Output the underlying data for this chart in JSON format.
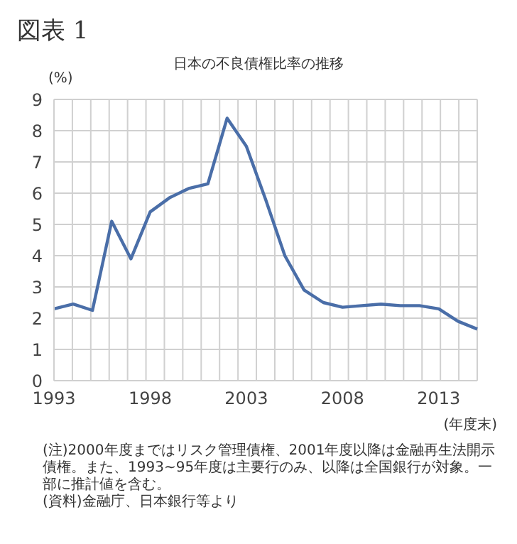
{
  "chart_data": {
    "type": "line",
    "title": "日本の不良債権比率の推移",
    "ylabel": "(%)",
    "xlabel": "(年度末)",
    "annotations": [
      "図表 1",
      "(注)2000年度まではリスク管理債権、2001年度以降は金融再生法開示債権。また、1993~95年度は主要行のみ、以降は全国銀行が対象。一部に推計値を含む。",
      "(資料)金融庁、日本銀行等より"
    ],
    "categories": [
      "1993",
      null,
      null,
      null,
      null,
      "1998",
      null,
      null,
      null,
      null,
      "2003",
      null,
      null,
      null,
      null,
      "2008",
      null,
      null,
      null,
      null,
      "2013",
      null,
      null
    ],
    "series": [
      {
        "color": "#4a6ea8",
        "values": [
          2.3,
          2.45,
          2.25,
          5.1,
          3.9,
          5.4,
          5.85,
          6.15,
          6.3,
          8.4,
          7.5,
          5.8,
          4.0,
          2.9,
          2.5,
          2.35,
          2.4,
          2.45,
          2.4,
          2.4,
          2.3,
          1.9,
          1.65
        ]
      }
    ],
    "ylim": [
      0,
      9
    ],
    "yticks": [
      0,
      1,
      2,
      3,
      4,
      5,
      6,
      7,
      8,
      9
    ],
    "grid": true,
    "legend": false,
    "marker": "none",
    "line_style": "solid"
  }
}
